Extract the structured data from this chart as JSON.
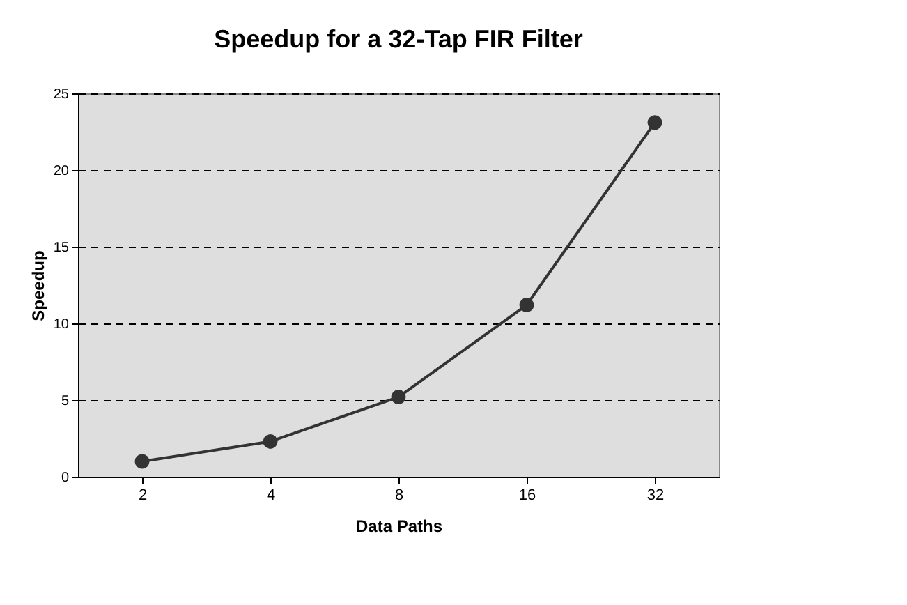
{
  "chart_data": {
    "type": "line",
    "title": "Speedup for a 32-Tap FIR Filter",
    "xlabel": "Data Paths",
    "ylabel": "Speedup",
    "categories": [
      "2",
      "4",
      "8",
      "16",
      "32"
    ],
    "series": [
      {
        "color": "#333333",
        "values": [
          1.0,
          2.3,
          5.2,
          11.2,
          23.1
        ]
      }
    ],
    "ylim": [
      0,
      25
    ],
    "yticks": [
      0,
      5,
      10,
      15,
      20,
      25
    ],
    "grid": "y",
    "marker": "circle",
    "line_style": "solid"
  }
}
